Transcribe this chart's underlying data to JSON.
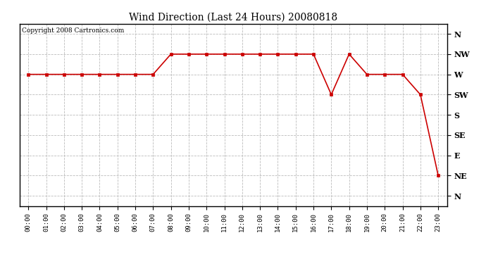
{
  "title": "Wind Direction (Last 24 Hours) 20080818",
  "copyright": "Copyright 2008 Cartronics.com",
  "background_color": "#ffffff",
  "line_color": "#cc0000",
  "marker_color": "#cc0000",
  "grid_color": "#bbbbbb",
  "ytick_labels": [
    "N",
    "NW",
    "W",
    "SW",
    "S",
    "SE",
    "E",
    "NE",
    "N"
  ],
  "ytick_values": [
    8,
    7,
    6,
    5,
    4,
    3,
    2,
    1,
    0
  ],
  "hours": [
    0,
    1,
    2,
    3,
    4,
    5,
    6,
    7,
    8,
    9,
    10,
    11,
    12,
    13,
    14,
    15,
    16,
    17,
    18,
    19,
    20,
    21,
    22,
    23
  ],
  "wind_values": [
    6,
    6,
    6,
    6,
    6,
    6,
    6,
    6,
    7,
    7,
    7,
    7,
    7,
    7,
    7,
    7,
    7,
    5,
    7,
    6,
    6,
    6,
    5,
    1
  ],
  "figwidth": 6.9,
  "figheight": 3.75,
  "dpi": 100
}
